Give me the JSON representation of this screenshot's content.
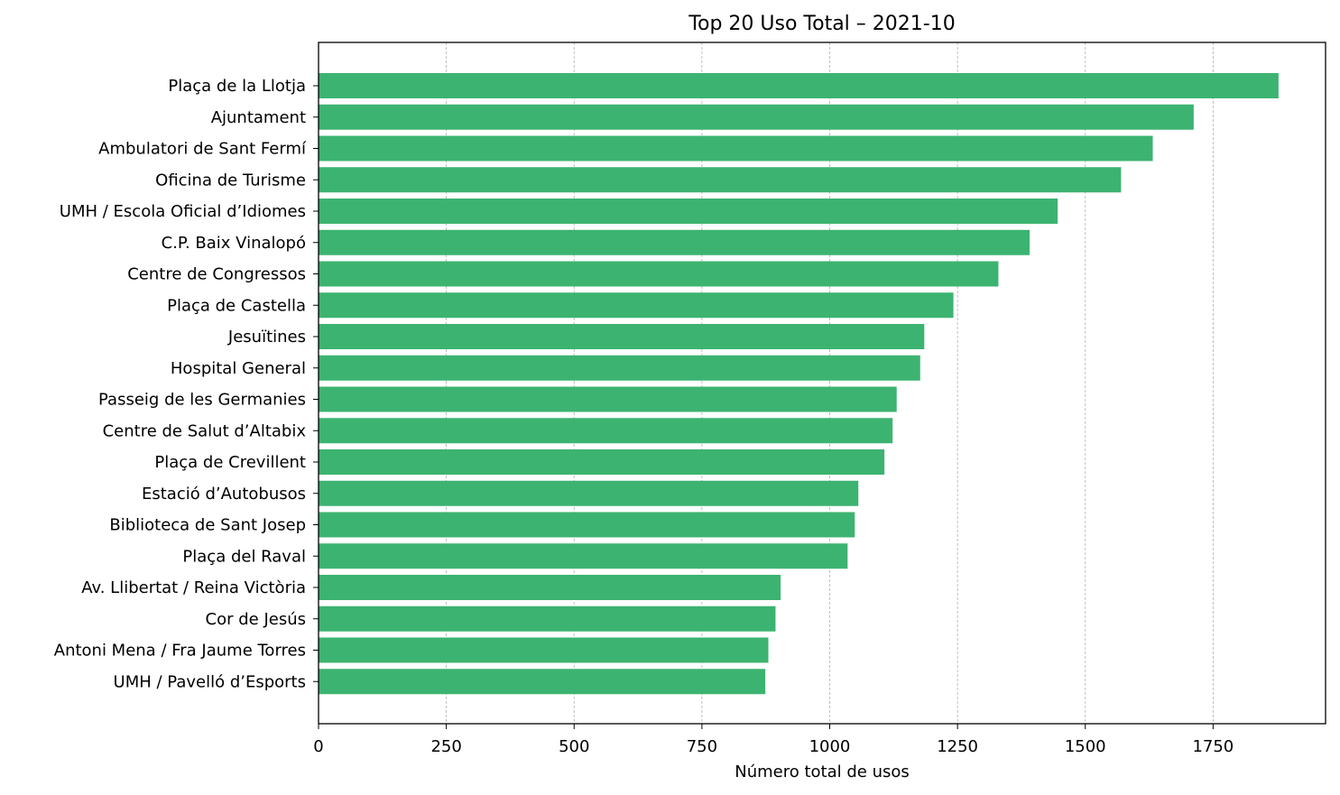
{
  "chart_data": {
    "type": "bar",
    "orientation": "horizontal",
    "title": "Top 20 Uso Total – 2021-10",
    "xlabel": "Número total de usos",
    "ylabel": "",
    "xlim": [
      0,
      1970
    ],
    "xticks": [
      0,
      250,
      500,
      750,
      1000,
      1250,
      1500,
      1750
    ],
    "grid": "x-dashed",
    "color": "#3cb371",
    "categories": [
      "Plaça de la Llotja",
      "Ajuntament",
      "Ambulatori de Sant Fermí",
      "Oficina de Turisme",
      "UMH / Escola Oficial d’Idiomes",
      "C.P. Baix Vinalopó",
      "Centre de Congressos",
      "Plaça de Castella",
      "Jesuïtines",
      "Hospital General",
      "Passeig de les Germanies",
      "Centre de Salut d’Altabix",
      "Plaça de Crevillent",
      "Estació d’Autobusos",
      "Biblioteca de Sant Josep",
      "Plaça del Raval",
      "Av. Llibertat / Reina Victòria",
      "Cor de Jesús",
      "Antoni Mena / Fra Jaume Torres",
      "UMH / Pavelló d’Esports"
    ],
    "values": [
      1878,
      1712,
      1632,
      1570,
      1446,
      1391,
      1330,
      1242,
      1185,
      1177,
      1131,
      1123,
      1107,
      1056,
      1049,
      1035,
      904,
      894,
      880,
      874
    ]
  }
}
